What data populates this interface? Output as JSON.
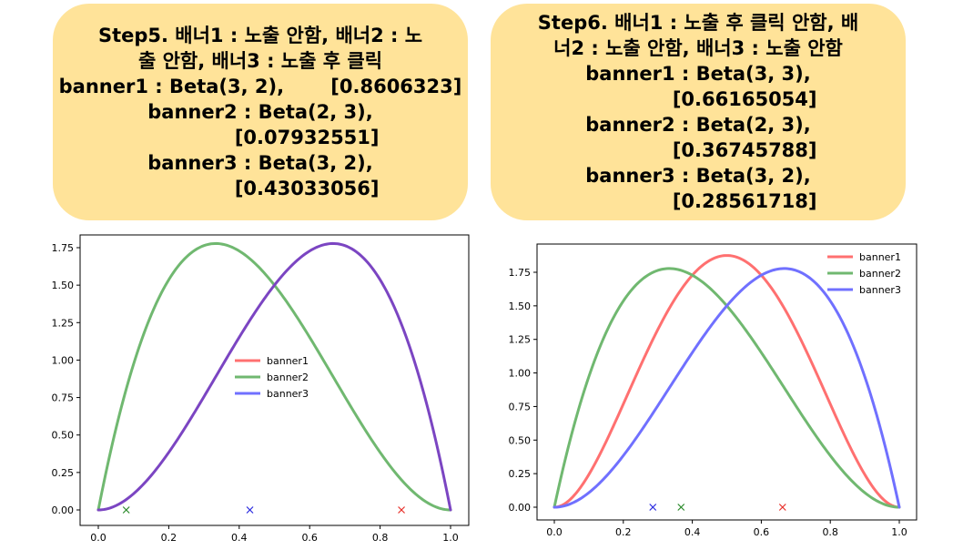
{
  "panels": {
    "left": {
      "lines": [
        "Step5. 배너1 : 노출 안함, 배너2 : 노",
        "출 안함, 배너3 : 노출 후 클릭",
        "banner1 : Beta(3, 2),       [0.8606323]",
        "banner2 : Beta(2, 3),",
        "              [0.07932551]",
        "banner3 : Beta(3, 2),",
        "              [0.43033056]"
      ]
    },
    "right": {
      "lines": [
        "Step6. 배너1 : 노출 후 클릭 안함, 배",
        "너2 : 노출 안함, 배너3 : 노출 안함",
        "banner1 : Beta(3, 3),",
        "              [0.66165054]",
        "banner2 : Beta(2, 3),",
        "              [0.36745788]",
        "banner3 : Beta(3, 2),",
        "              [0.28561718]"
      ]
    }
  },
  "colors": {
    "banner1": "#ff7070",
    "banner2": "#70b870",
    "banner3": "#7070ff",
    "overlap": "#7b45c2"
  },
  "chart_data": [
    {
      "type": "line",
      "title": "",
      "xlim": [
        0,
        1
      ],
      "ylim": [
        0,
        1.85
      ],
      "xticks": [
        "0.0",
        "0.2",
        "0.4",
        "0.6",
        "0.8",
        "1.0"
      ],
      "yticks": [
        "0.00",
        "0.25",
        "0.50",
        "0.75",
        "1.00",
        "1.25",
        "1.50",
        "1.75"
      ],
      "legend_position": "center",
      "series": [
        {
          "name": "banner1",
          "distribution": "Beta(3, 2)",
          "a": 3,
          "b": 2,
          "sample": 0.8606323
        },
        {
          "name": "banner2",
          "distribution": "Beta(2, 3)",
          "a": 2,
          "b": 3,
          "sample": 0.07932551
        },
        {
          "name": "banner3",
          "distribution": "Beta(3, 2)",
          "a": 3,
          "b": 2,
          "sample": 0.43033056
        }
      ]
    },
    {
      "type": "line",
      "title": "",
      "xlim": [
        0,
        1
      ],
      "ylim": [
        0,
        1.85
      ],
      "xticks": [
        "0.0",
        "0.2",
        "0.4",
        "0.6",
        "0.8",
        "1.0"
      ],
      "yticks": [
        "0.00",
        "0.25",
        "0.50",
        "0.75",
        "1.00",
        "1.25",
        "1.50",
        "1.75"
      ],
      "legend_position": "top-right",
      "series": [
        {
          "name": "banner1",
          "distribution": "Beta(3, 3)",
          "a": 3,
          "b": 3,
          "sample": 0.66165054
        },
        {
          "name": "banner2",
          "distribution": "Beta(2, 3)",
          "a": 2,
          "b": 3,
          "sample": 0.36745788
        },
        {
          "name": "banner3",
          "distribution": "Beta(3, 2)",
          "a": 3,
          "b": 2,
          "sample": 0.28561718
        }
      ]
    }
  ]
}
